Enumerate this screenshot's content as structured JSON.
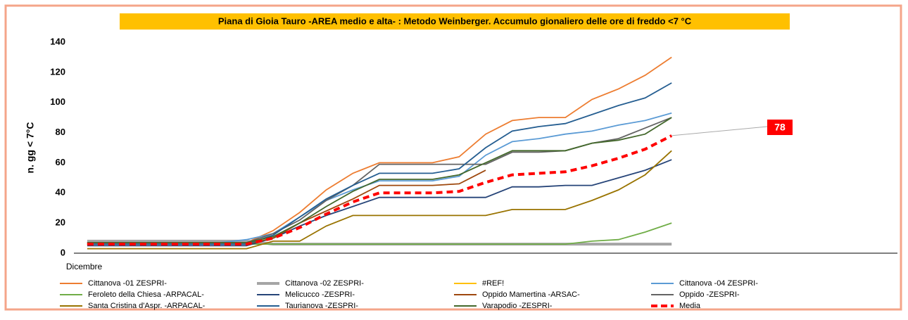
{
  "chart_data": {
    "type": "line",
    "title": "Piana di Gioia Tauro -AREA medio e alta- : Metodo Weinberger. Accumulo gionaliero delle ore di freddo  <7 °C",
    "y_label": "n. gg < 7°C",
    "categories": [
      "Dicembre",
      null,
      null,
      null,
      null,
      null,
      null,
      null,
      null,
      null,
      null,
      null,
      null,
      null,
      null,
      null,
      null,
      null,
      null,
      null,
      null,
      null,
      null,
      null,
      null,
      null,
      null,
      null,
      null,
      null,
      null
    ],
    "ylim": [
      0,
      140
    ],
    "yticks": [
      0,
      20,
      40,
      60,
      80,
      100,
      120,
      140
    ],
    "grid": false,
    "legend": "bottom",
    "series": [
      {
        "name": "Cittanova -01 ZESPRI-",
        "color": "#ed7d31",
        "values": [
          7,
          7,
          7,
          7,
          7,
          7,
          7,
          15,
          27,
          42,
          53,
          60,
          60,
          60,
          64,
          79,
          88,
          90,
          90,
          102,
          109,
          118,
          130,
          null,
          null,
          null,
          null,
          null,
          null,
          null,
          null
        ]
      },
      {
        "name": "Cittanova -02 ZESPRI-",
        "color": "#a5a5a5",
        "values": [
          8,
          8,
          8,
          8,
          8,
          8,
          8,
          6,
          6,
          6,
          6,
          6,
          6,
          6,
          6,
          6,
          6,
          6,
          6,
          6,
          6,
          6,
          6,
          null,
          null,
          null,
          null,
          null,
          null,
          null,
          null
        ]
      },
      {
        "name": "#REF!",
        "color": "#ffc000",
        "values": [
          null,
          null,
          null,
          null,
          null,
          null,
          null,
          null,
          null,
          null,
          null,
          null,
          null,
          null,
          null,
          null,
          null,
          null,
          null,
          null,
          null,
          null,
          null,
          null,
          null,
          null,
          null,
          null,
          null,
          null,
          null
        ]
      },
      {
        "name": "Cittanova -04 ZESPRI-",
        "color": "#5b9bd5",
        "values": [
          7,
          7,
          7,
          7,
          7,
          7,
          9,
          13,
          24,
          35,
          42,
          48,
          48,
          48,
          51,
          65,
          74,
          76,
          79,
          81,
          85,
          88,
          93,
          null,
          null,
          null,
          null,
          null,
          null,
          null,
          null
        ]
      },
      {
        "name": "Feroleto della Chiesa -ARPACAL-",
        "color": "#70ad47",
        "values": [
          6,
          6,
          6,
          6,
          6,
          6,
          6,
          6,
          6,
          6,
          6,
          6,
          6,
          6,
          6,
          6,
          6,
          6,
          6,
          8,
          9,
          14,
          20,
          null,
          null,
          null,
          null,
          null,
          null,
          null,
          null
        ]
      },
      {
        "name": "Melicucco -ZESPRI-",
        "color": "#264478",
        "values": [
          5,
          5,
          5,
          5,
          5,
          5,
          5,
          10,
          18,
          25,
          31,
          37,
          37,
          37,
          37,
          37,
          44,
          44,
          45,
          45,
          50,
          55,
          62,
          null,
          null,
          null,
          null,
          null,
          null,
          null,
          null
        ]
      },
      {
        "name": "Oppido Mamertina -ARSAC-",
        "color": "#9e480e",
        "values": [
          6,
          6,
          6,
          6,
          6,
          6,
          6,
          10,
          20,
          28,
          36,
          45,
          45,
          45,
          46,
          55,
          null,
          null,
          null,
          null,
          null,
          null,
          null,
          null,
          null,
          null,
          null,
          null,
          null,
          null,
          null
        ]
      },
      {
        "name": "Oppido -ZESPRI-",
        "color": "#636363",
        "values": [
          7,
          7,
          7,
          7,
          7,
          7,
          7,
          13,
          22,
          35,
          45,
          59,
          59,
          59,
          59,
          59,
          67,
          67,
          68,
          73,
          76,
          83,
          90,
          null,
          null,
          null,
          null,
          null,
          null,
          null,
          null
        ]
      },
      {
        "name": "Santa Cristina d'Aspr. -ARPACAL-",
        "color": "#997300",
        "values": [
          3,
          3,
          3,
          3,
          3,
          3,
          3,
          8,
          8,
          18,
          25,
          25,
          25,
          25,
          25,
          25,
          29,
          29,
          29,
          35,
          42,
          52,
          68,
          null,
          null,
          null,
          null,
          null,
          null,
          null,
          null
        ]
      },
      {
        "name": "Taurianova -ZESPRI-",
        "color": "#255e91",
        "values": [
          6,
          6,
          6,
          6,
          6,
          6,
          6,
          12,
          24,
          36,
          45,
          53,
          53,
          53,
          56,
          70,
          81,
          84,
          86,
          92,
          98,
          103,
          113,
          null,
          null,
          null,
          null,
          null,
          null,
          null,
          null
        ]
      },
      {
        "name": "Varapodio -ZESPRI-",
        "color": "#43682b",
        "values": [
          7,
          7,
          7,
          7,
          7,
          7,
          7,
          11,
          20,
          31,
          41,
          49,
          49,
          49,
          52,
          60,
          68,
          68,
          68,
          73,
          75,
          79,
          90,
          null,
          null,
          null,
          null,
          null,
          null,
          null,
          null
        ]
      },
      {
        "name": "Media",
        "color": "#ff0000",
        "dashed": true,
        "values": [
          6,
          6,
          6,
          6,
          6,
          6,
          6,
          10,
          17,
          26,
          34,
          40,
          40,
          40,
          41,
          47,
          52,
          53,
          54,
          58,
          63,
          69,
          78,
          null,
          null,
          null,
          null,
          null,
          null,
          null,
          null
        ]
      }
    ]
  }
}
